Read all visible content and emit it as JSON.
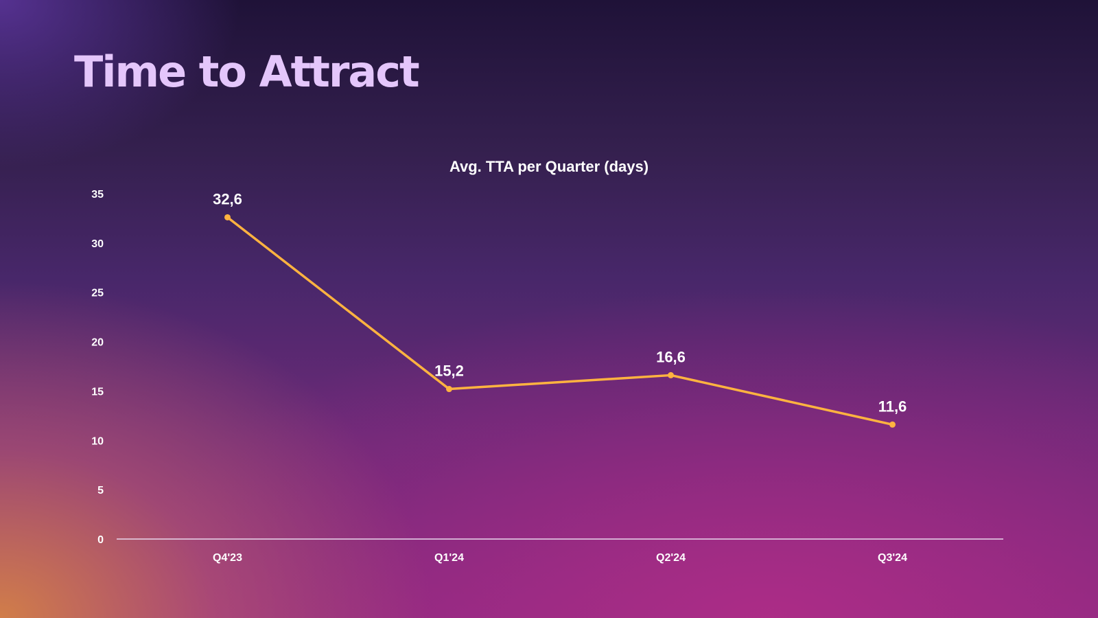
{
  "slide": {
    "title": "Time to Attract"
  },
  "chart_data": {
    "type": "line",
    "title": "Avg. TTA per Quarter (days)",
    "xlabel": "",
    "ylabel": "",
    "categories": [
      "Q4'23",
      "Q1'24",
      "Q2'24",
      "Q3'24"
    ],
    "values": [
      32.6,
      15.2,
      16.6,
      11.6
    ],
    "data_labels": [
      "32,6",
      "15,2",
      "16,6",
      "11,6"
    ],
    "ylim": [
      0,
      35
    ],
    "yticks": [
      "0",
      "5",
      "10",
      "15",
      "20",
      "25",
      "30",
      "35"
    ],
    "grid": false,
    "legend": "none",
    "line_color": "#ffb340"
  }
}
